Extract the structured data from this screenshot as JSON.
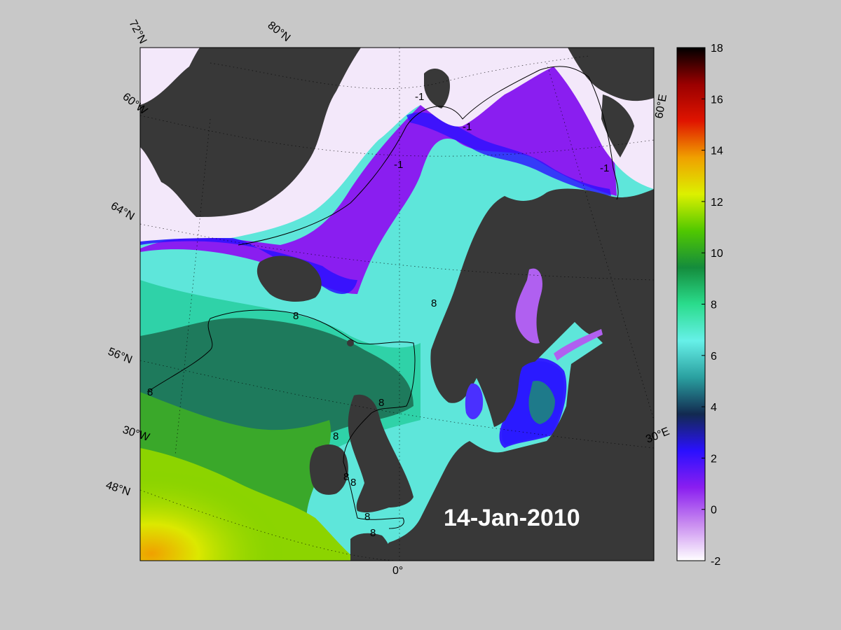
{
  "date_label": "14-Jan-2010",
  "lat_labels": [
    "72°N",
    "80°N",
    "64°N",
    "56°N",
    "48°N"
  ],
  "lon_labels": [
    "60°W",
    "30°W",
    "0°",
    "30°E",
    "60°E"
  ],
  "contour_labels": [
    "-1",
    "-1",
    "-1",
    "-1",
    "8",
    "8",
    "8",
    "8",
    "8",
    "8",
    "8",
    "8",
    "8"
  ],
  "colorbar": {
    "ticks": [
      "18",
      "16",
      "14",
      "12",
      "10",
      "8",
      "6",
      "4",
      "2",
      "0",
      "-2"
    ],
    "min": -2,
    "max": 18,
    "stops": [
      "#ffffff",
      "#c98cf0",
      "#8a1ef0",
      "#2a10ff",
      "#122a50",
      "#2aa0a0",
      "#66f0e8",
      "#2adc8c",
      "#148c3c",
      "#50c800",
      "#dcf000",
      "#f0a000",
      "#e01400",
      "#9a0000",
      "#000000"
    ]
  },
  "colors": {
    "land": "#383838",
    "ice": "#f3e8fa",
    "background": "#c8c8c8"
  }
}
